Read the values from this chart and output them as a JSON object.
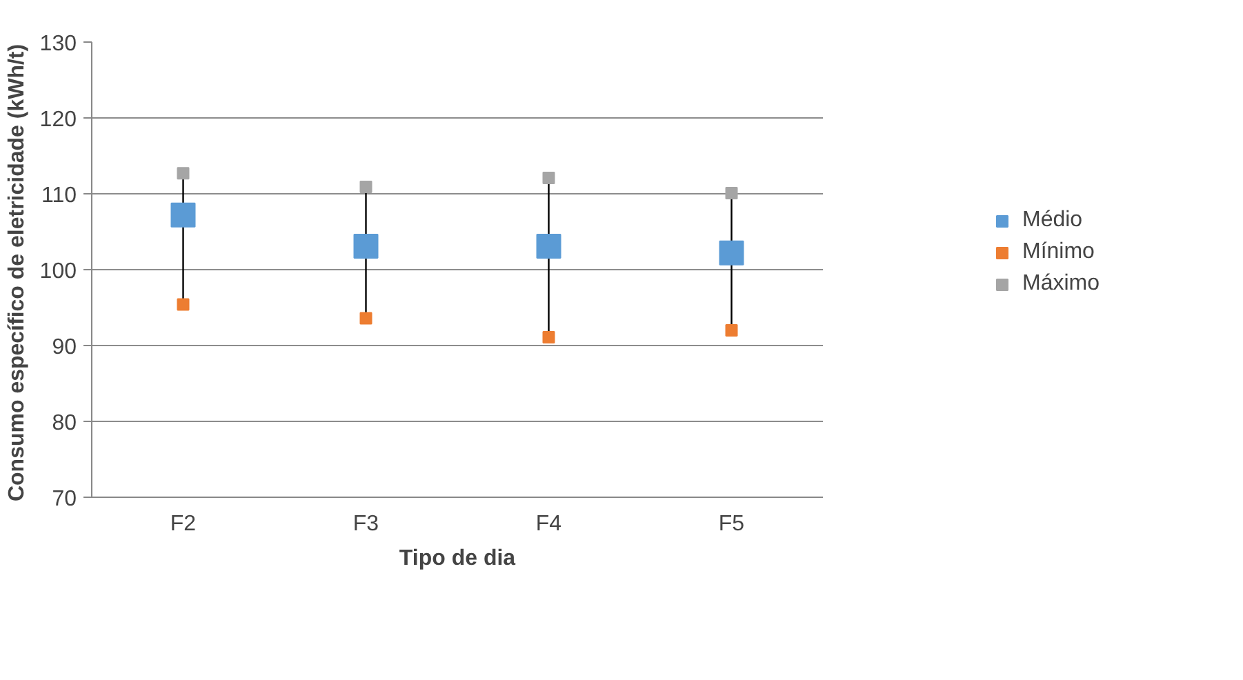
{
  "chart_data": {
    "type": "scatter",
    "xlabel": "Tipo de dia",
    "ylabel": "Consumo específico de eletricidade  (kWh/t)",
    "categories": [
      "F2",
      "F3",
      "F4",
      "F5"
    ],
    "series": [
      {
        "name": "Médio",
        "color": "#5b9bd5",
        "marker": "square",
        "values": [
          107.2,
          103.1,
          103.1,
          102.2
        ]
      },
      {
        "name": "Mínimo",
        "color": "#ed7d31",
        "marker": "square",
        "values": [
          95.4,
          93.6,
          91.1,
          92.0
        ]
      },
      {
        "name": "Máximo",
        "color": "#a5a5a5",
        "marker": "square",
        "values": [
          112.7,
          110.9,
          112.1,
          110.1
        ]
      }
    ],
    "ylim": [
      70,
      130
    ],
    "yticks": [
      70,
      80,
      90,
      100,
      110,
      120,
      130
    ],
    "grid": "y",
    "legend": "right"
  }
}
